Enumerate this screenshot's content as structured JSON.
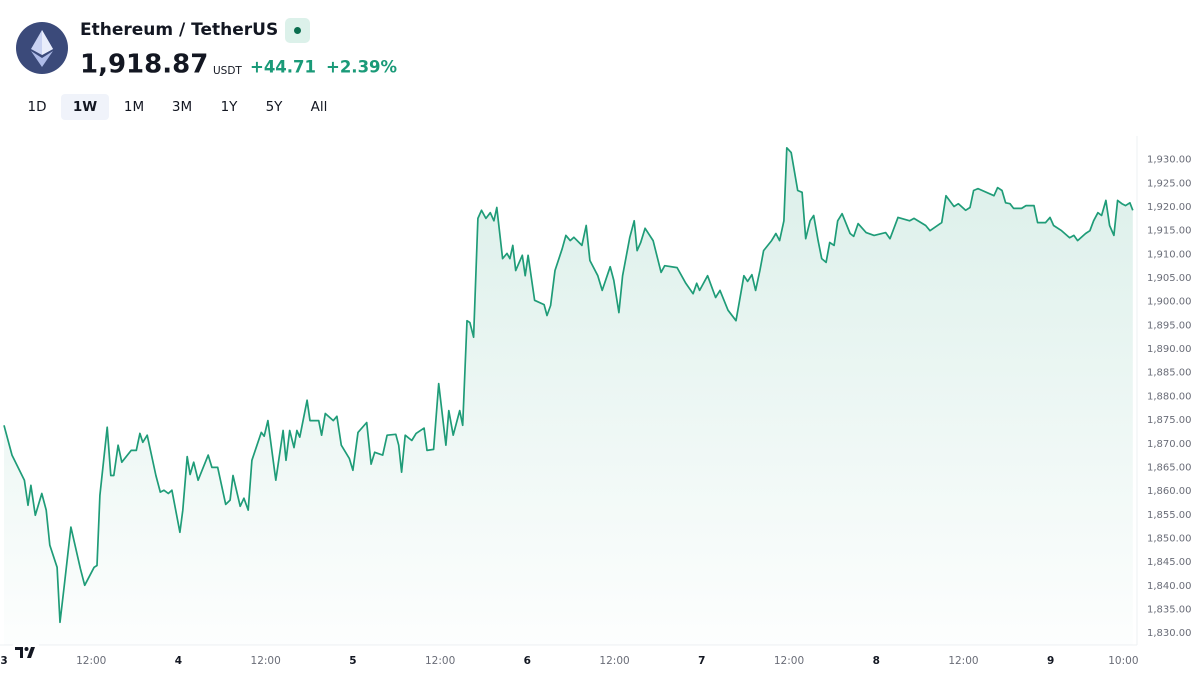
{
  "header": {
    "symbol": "Ethereum / TetherUS",
    "price": "1,918.87",
    "currency": "USDT",
    "change": "+44.71",
    "change_percent": "+2.39%"
  },
  "ranges": [
    "1D",
    "1W",
    "1M",
    "3M",
    "1Y",
    "5Y",
    "All"
  ],
  "active_range": 1,
  "chart_data": {
    "type": "area",
    "color": "#1f9c78",
    "x": [
      0,
      1.1,
      2.8,
      3.3,
      3.7,
      4.3,
      5.2,
      5.8,
      6.3,
      7.3,
      7.7,
      8.3,
      9.2,
      10.5,
      11.1,
      12.4,
      12.8,
      13.2,
      14.2,
      14.7,
      15.1,
      15.7,
      16.2,
      17.5,
      18.2,
      18.7,
      19.1,
      19.7,
      20.9,
      21.5,
      22.0,
      22.6,
      23.1,
      24.2,
      24.6,
      25.2,
      25.6,
      26.1,
      26.7,
      28.1,
      28.6,
      29.4,
      30.5,
      31.1,
      31.5,
      32.5,
      33.0,
      33.6,
      34.1,
      35.4,
      35.8,
      36.3,
      37.4,
      38.4,
      38.8,
      39.3,
      39.9,
      40.3,
      40.7,
      41.7,
      42.1,
      43.3,
      43.7,
      44.2,
      45.3,
      45.8,
      46.4,
      47.5,
      48.0,
      48.7,
      49.9,
      50.5,
      51.0,
      52.1,
      52.7,
      53.9,
      54.3,
      54.7,
      55.2,
      56.1,
      56.7,
      57.8,
      58.2,
      59.1,
      59.8,
      60.8,
      61.2,
      61.8,
      62.7,
      63.1,
      63.7,
      64.1,
      64.6,
      65.2,
      65.7,
      66.3,
      66.9,
      67.4,
      67.8,
      68.6,
      69.2,
      69.6,
      70.0,
      70.4,
      71.3,
      71.7,
      72.1,
      73.0,
      74.3,
      74.7,
      75.2,
      75.8,
      76.8,
      77.3,
      77.9,
      78.4,
      79.5,
      80.1,
      80.6,
      81.7,
      82.3,
      83.4,
      83.9,
      84.6,
      85.1,
      86.1,
      86.7,
      87.1,
      87.6,
      88.2,
      89.3,
      90.4,
      90.9,
      92.6,
      93.8,
      94.8,
      95.3,
      95.7,
      96.8,
      97.9,
      98.5,
      99.6,
      100.7,
      101.2,
      101.8,
      102.3,
      102.9,
      103.4,
      104.0,
      104.5,
      105.6,
      106.2,
      106.7,
      107.3,
      107.7,
      108.3,
      109.2,
      109.8,
      110.3,
      110.9,
      111.4,
      112.0,
      112.5,
      113.1,
      113.6,
      114.2,
      114.7,
      115.3,
      116.4,
      116.9,
      117.5,
      118.6,
      119.7,
      121.3,
      121.9,
      123.0,
      124.6,
      125.2,
      126.8,
      127.4,
      129.0,
      129.6,
      130.7,
      131.3,
      132.3,
      132.9,
      133.4,
      134.0,
      136.2,
      136.7,
      137.3,
      137.8,
      138.4,
      138.9,
      140.0,
      140.6,
      141.7,
      142.2,
      143.3,
      143.9,
      144.4,
      145.5,
      146.6,
      147.2,
      147.7,
      148.8,
      149.4,
      149.9,
      150.5,
      151.0,
      151.6,
      152.1,
      152.7,
      153.2,
      153.8,
      154.3,
      154.9,
      155.3
    ],
    "values": [
      1873.9,
      1867.6,
      1862.3,
      1857.0,
      1861.2,
      1854.9,
      1859.5,
      1856.0,
      1848.6,
      1843.9,
      1832.3,
      1840.1,
      1852.4,
      1843.7,
      1840.1,
      1843.9,
      1844.3,
      1859.1,
      1873.5,
      1863.3,
      1863.3,
      1869.7,
      1866.1,
      1868.6,
      1868.6,
      1872.2,
      1870.3,
      1871.8,
      1863.3,
      1859.8,
      1860.2,
      1859.5,
      1860.2,
      1851.3,
      1856.0,
      1867.3,
      1863.5,
      1866.1,
      1862.3,
      1867.6,
      1865.0,
      1865.0,
      1857.2,
      1858.1,
      1863.3,
      1856.8,
      1858.5,
      1856.0,
      1866.5,
      1872.4,
      1871.6,
      1874.9,
      1862.3,
      1872.8,
      1866.5,
      1872.8,
      1869.2,
      1872.8,
      1871.4,
      1879.2,
      1874.9,
      1874.9,
      1871.8,
      1876.4,
      1874.9,
      1875.8,
      1869.7,
      1866.9,
      1864.4,
      1872.4,
      1874.5,
      1865.7,
      1868.2,
      1867.6,
      1871.8,
      1872.0,
      1869.7,
      1864.0,
      1871.8,
      1870.7,
      1872.2,
      1873.3,
      1868.6,
      1868.8,
      1882.7,
      1869.7,
      1877.0,
      1871.8,
      1877.0,
      1873.9,
      1896.0,
      1895.6,
      1892.5,
      1917.6,
      1919.3,
      1917.6,
      1918.8,
      1917.1,
      1919.9,
      1909.1,
      1910.2,
      1909.1,
      1911.9,
      1906.6,
      1909.8,
      1905.5,
      1909.8,
      1900.3,
      1899.4,
      1897.1,
      1899.2,
      1906.6,
      1911.2,
      1914.0,
      1912.9,
      1913.6,
      1911.9,
      1916.1,
      1908.7,
      1905.5,
      1902.4,
      1907.4,
      1904.5,
      1897.7,
      1905.5,
      1913.6,
      1917.1,
      1910.8,
      1912.5,
      1915.5,
      1912.9,
      1906.2,
      1907.6,
      1907.2,
      1903.9,
      1901.7,
      1903.9,
      1902.4,
      1905.5,
      1900.9,
      1902.4,
      1898.2,
      1896.0,
      1900.3,
      1905.5,
      1904.3,
      1905.7,
      1902.4,
      1906.6,
      1910.8,
      1912.9,
      1914.4,
      1912.9,
      1917.1,
      1932.5,
      1931.5,
      1923.5,
      1923.1,
      1913.3,
      1917.1,
      1918.2,
      1912.9,
      1909.1,
      1908.3,
      1912.5,
      1911.9,
      1917.1,
      1918.6,
      1914.4,
      1913.8,
      1916.5,
      1914.6,
      1914.0,
      1914.6,
      1913.3,
      1917.8,
      1917.1,
      1917.6,
      1916.1,
      1915.0,
      1916.7,
      1922.4,
      1920.1,
      1920.7,
      1919.3,
      1919.9,
      1923.5,
      1923.9,
      1922.4,
      1924.1,
      1923.5,
      1920.9,
      1920.7,
      1919.7,
      1919.7,
      1920.3,
      1920.3,
      1916.7,
      1916.7,
      1917.8,
      1916.1,
      1915.0,
      1913.5,
      1914.0,
      1912.9,
      1914.4,
      1915.0,
      1917.1,
      1918.8,
      1918.2,
      1921.4,
      1916.1,
      1914.0,
      1921.4,
      1920.7,
      1920.3,
      1920.9,
      1919.3
    ],
    "xlim": [
      0,
      155.6
    ],
    "xticks": [
      {
        "value": 0,
        "label": "3"
      },
      {
        "value": 12,
        "label": "12:00"
      },
      {
        "value": 24,
        "label": "4"
      },
      {
        "value": 36,
        "label": "12:00"
      },
      {
        "value": 48,
        "label": "5"
      },
      {
        "value": 60,
        "label": "12:00"
      },
      {
        "value": 72,
        "label": "6"
      },
      {
        "value": 84,
        "label": "12:00"
      },
      {
        "value": 96,
        "label": "7"
      },
      {
        "value": 108,
        "label": "12:00"
      },
      {
        "value": 120,
        "label": "8"
      },
      {
        "value": 132,
        "label": "12:00"
      },
      {
        "value": 144,
        "label": "9"
      },
      {
        "value": 154,
        "label": "10:00"
      }
    ],
    "ylim": [
      1827.5,
      1935
    ],
    "yticks": [
      {
        "value": 1830,
        "label": "1,830.00"
      },
      {
        "value": 1835,
        "label": "1,835.00"
      },
      {
        "value": 1840,
        "label": "1,840.00"
      },
      {
        "value": 1845,
        "label": "1,845.00"
      },
      {
        "value": 1850,
        "label": "1,850.00"
      },
      {
        "value": 1855,
        "label": "1,855.00"
      },
      {
        "value": 1860,
        "label": "1,860.00"
      },
      {
        "value": 1865,
        "label": "1,865.00"
      },
      {
        "value": 1870,
        "label": "1,870.00"
      },
      {
        "value": 1875,
        "label": "1,875.00"
      },
      {
        "value": 1880,
        "label": "1,880.00"
      },
      {
        "value": 1885,
        "label": "1,885.00"
      },
      {
        "value": 1890,
        "label": "1,890.00"
      },
      {
        "value": 1895,
        "label": "1,895.00"
      },
      {
        "value": 1900,
        "label": "1,900.00"
      },
      {
        "value": 1905,
        "label": "1,905.00"
      },
      {
        "value": 1910,
        "label": "1,910.00"
      },
      {
        "value": 1915,
        "label": "1,915.00"
      },
      {
        "value": 1920,
        "label": "1,920.00"
      },
      {
        "value": 1925,
        "label": "1,925.00"
      },
      {
        "value": 1930,
        "label": "1,930.00"
      }
    ]
  }
}
